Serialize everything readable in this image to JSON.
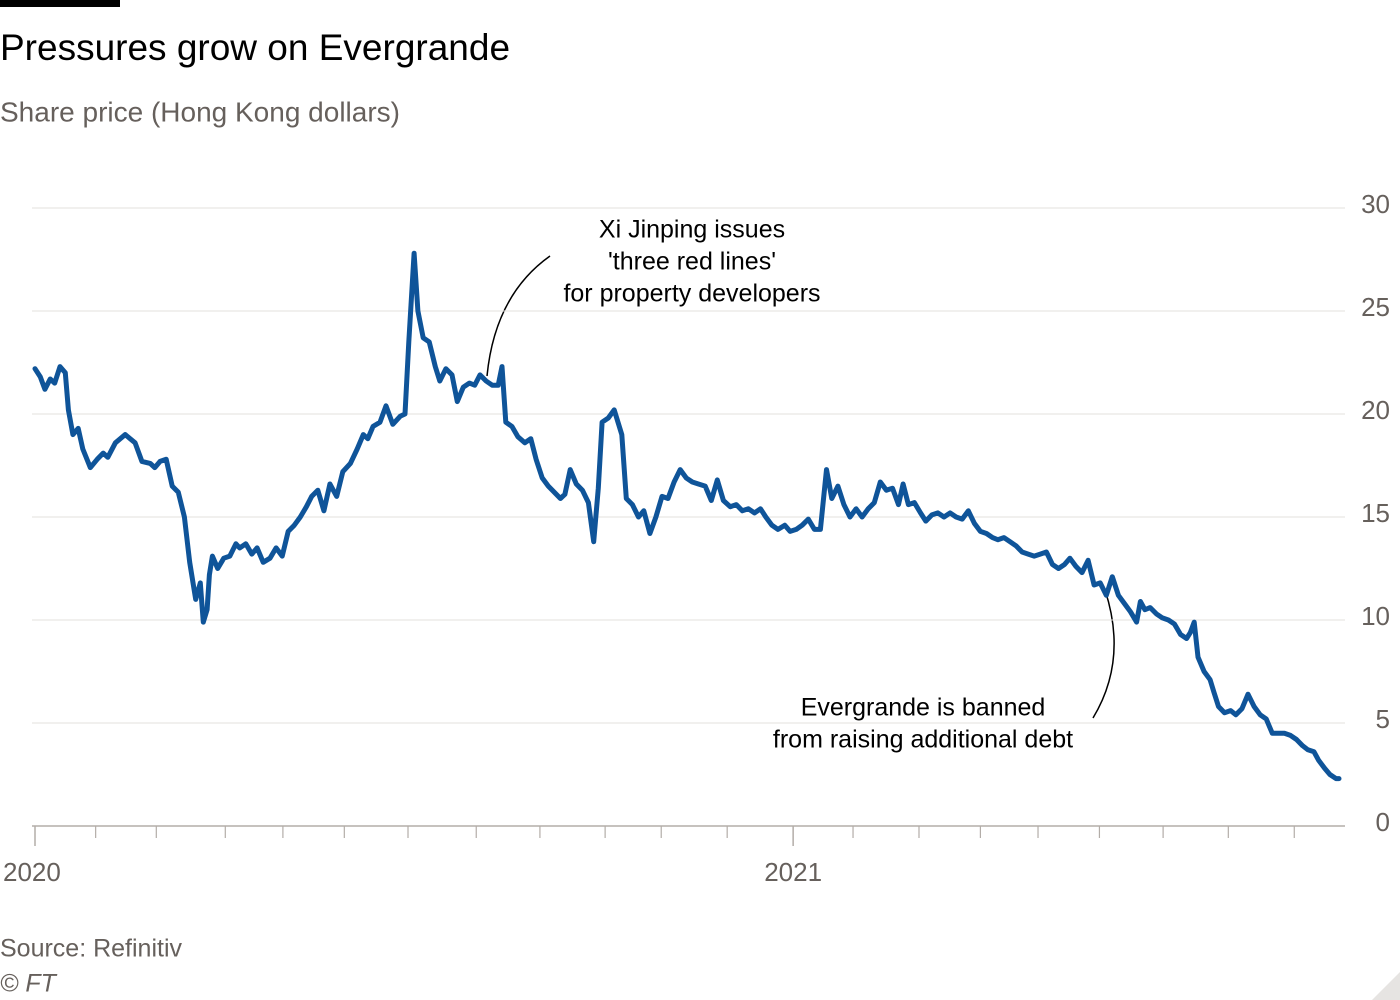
{
  "chart_data": {
    "type": "line",
    "title": "Pressures grow on Evergrande",
    "subtitle": "Share price (Hong Kong dollars)",
    "source": "Source: Refinitiv",
    "credit": "© FT",
    "annotations": [
      {
        "lines": [
          "Xi Jinping issues",
          "'three red lines'",
          "for property developers"
        ]
      },
      {
        "lines": [
          "Evergrande is banned",
          "from raising additional debt"
        ]
      }
    ],
    "xlim": [
      2020,
      2021.72
    ],
    "xticks": [
      2020,
      2021
    ],
    "xminorticks": [
      2020.08,
      2020.16,
      2020.251,
      2020.327,
      2020.408,
      2020.492,
      2020.582,
      2020.666,
      2020.752,
      2020.826,
      2020.913,
      2021.079,
      2021.166,
      2021.247,
      2021.323,
      2021.404,
      2021.488,
      2021.574,
      2021.661
    ],
    "ylim": [
      0,
      30
    ],
    "yticks": [
      0,
      5,
      10,
      15,
      20,
      25,
      30
    ],
    "grid": true,
    "x": [
      2020.0,
      2020.007,
      2020.013,
      2020.02,
      2020.026,
      2020.033,
      2020.04,
      2020.044,
      2020.05,
      2020.057,
      2020.063,
      2020.073,
      2020.082,
      2020.09,
      2020.096,
      2020.106,
      2020.119,
      2020.132,
      2020.141,
      2020.152,
      2020.158,
      2020.165,
      2020.173,
      2020.181,
      2020.189,
      2020.197,
      2020.204,
      2020.212,
      2020.218,
      2020.222,
      2020.227,
      2020.23,
      2020.234,
      2020.241,
      2020.249,
      2020.257,
      2020.265,
      2020.27,
      2020.278,
      2020.286,
      2020.293,
      2020.301,
      2020.31,
      2020.318,
      2020.326,
      2020.334,
      2020.342,
      2020.35,
      2020.358,
      2020.365,
      2020.373,
      2020.381,
      2020.389,
      2020.398,
      2020.406,
      2020.416,
      2020.425,
      2020.433,
      2020.439,
      2020.446,
      2020.455,
      2020.463,
      2020.472,
      2020.482,
      2020.488,
      2020.493,
      2020.5,
      2020.505,
      2020.512,
      2020.52,
      2020.528,
      2020.534,
      2020.542,
      2020.55,
      2020.557,
      2020.565,
      2020.573,
      2020.58,
      2020.587,
      2020.595,
      2020.603,
      2020.611,
      2020.616,
      2020.621,
      2020.629,
      2020.637,
      2020.646,
      2020.654,
      2020.661,
      2020.669,
      2020.677,
      2020.685,
      2020.693,
      2020.699,
      2020.706,
      2020.714,
      2020.722,
      2020.73,
      2020.737,
      2020.743,
      2020.748,
      2020.756,
      2020.764,
      2020.769,
      2020.774,
      2020.78,
      2020.788,
      2020.796,
      2020.803,
      2020.811,
      2020.819,
      2020.827,
      2020.835,
      2020.843,
      2020.851,
      2020.859,
      2020.867,
      2020.875,
      2020.884,
      2020.892,
      2020.9,
      2020.908,
      2020.917,
      2020.925,
      2020.933,
      2020.941,
      2020.949,
      2020.957,
      2020.964,
      2020.972,
      2020.98,
      2020.989,
      2020.996,
      2021.004,
      2021.012,
      2021.02,
      2021.028,
      2021.036,
      2021.044,
      2021.051,
      2021.059,
      2021.067,
      2021.075,
      2021.083,
      2021.091,
      2021.099,
      2021.107,
      2021.115,
      2021.123,
      2021.131,
      2021.139,
      2021.145,
      2021.152,
      2021.16,
      2021.168,
      2021.175,
      2021.183,
      2021.191,
      2021.199,
      2021.207,
      2021.215,
      2021.223,
      2021.231,
      2021.239,
      2021.247,
      2021.255,
      2021.263,
      2021.27,
      2021.278,
      2021.286,
      2021.294,
      2021.302,
      2021.31,
      2021.318,
      2021.326,
      2021.334,
      2021.342,
      2021.35,
      2021.358,
      2021.365,
      2021.373,
      2021.381,
      2021.389,
      2021.397,
      2021.405,
      2021.413,
      2021.421,
      2021.429,
      2021.437,
      2021.445,
      2021.453,
      2021.458,
      2021.464,
      2021.471,
      2021.479,
      2021.487,
      2021.495,
      2021.503,
      2021.511,
      2021.519,
      2021.524,
      2021.529,
      2021.534,
      2021.542,
      2021.55,
      2021.555,
      2021.561,
      2021.569,
      2021.577,
      2021.584,
      2021.592,
      2021.6,
      2021.608,
      2021.616,
      2021.624,
      2021.632,
      2021.64,
      2021.648,
      2021.656,
      2021.664,
      2021.672,
      2021.679,
      2021.687,
      2021.693,
      2021.701,
      2021.708,
      2021.716,
      2021.72
    ],
    "series": [
      {
        "name": "Evergrande",
        "color": "#0f5499",
        "values": [
          22.2,
          21.8,
          21.2,
          21.7,
          21.5,
          22.3,
          22.0,
          20.2,
          19.0,
          19.3,
          18.3,
          17.4,
          17.8,
          18.1,
          17.9,
          18.6,
          19.0,
          18.6,
          17.7,
          17.6,
          17.4,
          17.7,
          17.8,
          16.5,
          16.2,
          15.0,
          12.8,
          11.0,
          11.8,
          9.9,
          10.5,
          12.2,
          13.1,
          12.5,
          13.0,
          13.1,
          13.7,
          13.5,
          13.7,
          13.2,
          13.5,
          12.8,
          13.0,
          13.5,
          13.1,
          14.3,
          14.6,
          15.0,
          15.5,
          16.0,
          16.3,
          15.3,
          16.6,
          16.0,
          17.2,
          17.6,
          18.3,
          19.0,
          18.8,
          19.4,
          19.6,
          20.4,
          19.5,
          19.9,
          20.0,
          23.5,
          27.8,
          25.0,
          23.7,
          23.5,
          22.3,
          21.6,
          22.2,
          21.9,
          20.6,
          21.3,
          21.5,
          21.4,
          21.9,
          21.6,
          21.4,
          21.4,
          22.3,
          19.6,
          19.4,
          18.9,
          18.6,
          18.8,
          17.8,
          16.9,
          16.5,
          16.2,
          15.9,
          16.1,
          17.3,
          16.6,
          16.3,
          15.7,
          13.8,
          16.4,
          19.6,
          19.8,
          20.2,
          19.6,
          19.0,
          15.9,
          15.6,
          15.0,
          15.3,
          14.2,
          15.0,
          16.0,
          15.9,
          16.7,
          17.3,
          16.9,
          16.7,
          16.6,
          16.5,
          15.8,
          16.8,
          15.8,
          15.5,
          15.6,
          15.3,
          15.4,
          15.2,
          15.4,
          15.0,
          14.6,
          14.4,
          14.6,
          14.3,
          14.4,
          14.6,
          14.9,
          14.4,
          14.4,
          17.3,
          15.9,
          16.5,
          15.6,
          15.0,
          15.4,
          15.0,
          15.4,
          15.7,
          16.7,
          16.3,
          16.4,
          15.6,
          16.6,
          15.6,
          15.7,
          15.2,
          14.8,
          15.1,
          15.2,
          15.0,
          15.2,
          15.0,
          14.9,
          15.3,
          14.7,
          14.3,
          14.2,
          14.0,
          13.9,
          14.0,
          13.8,
          13.6,
          13.3,
          13.2,
          13.1,
          13.2,
          13.3,
          12.7,
          12.5,
          12.7,
          13.0,
          12.6,
          12.3,
          12.9,
          11.7,
          11.8,
          11.2,
          12.1,
          11.2,
          10.8,
          10.4,
          9.9,
          10.9,
          10.5,
          10.6,
          10.3,
          10.1,
          10.0,
          9.8,
          9.3,
          9.1,
          9.4,
          9.9,
          8.2,
          7.5,
          7.1,
          6.5,
          5.8,
          5.5,
          5.6,
          5.4,
          5.7,
          6.4,
          5.8,
          5.4,
          5.2,
          4.5,
          4.5,
          4.5,
          4.4,
          4.2,
          3.9,
          3.7,
          3.6,
          3.2,
          2.8,
          2.5,
          2.3,
          2.3
        ]
      }
    ]
  }
}
